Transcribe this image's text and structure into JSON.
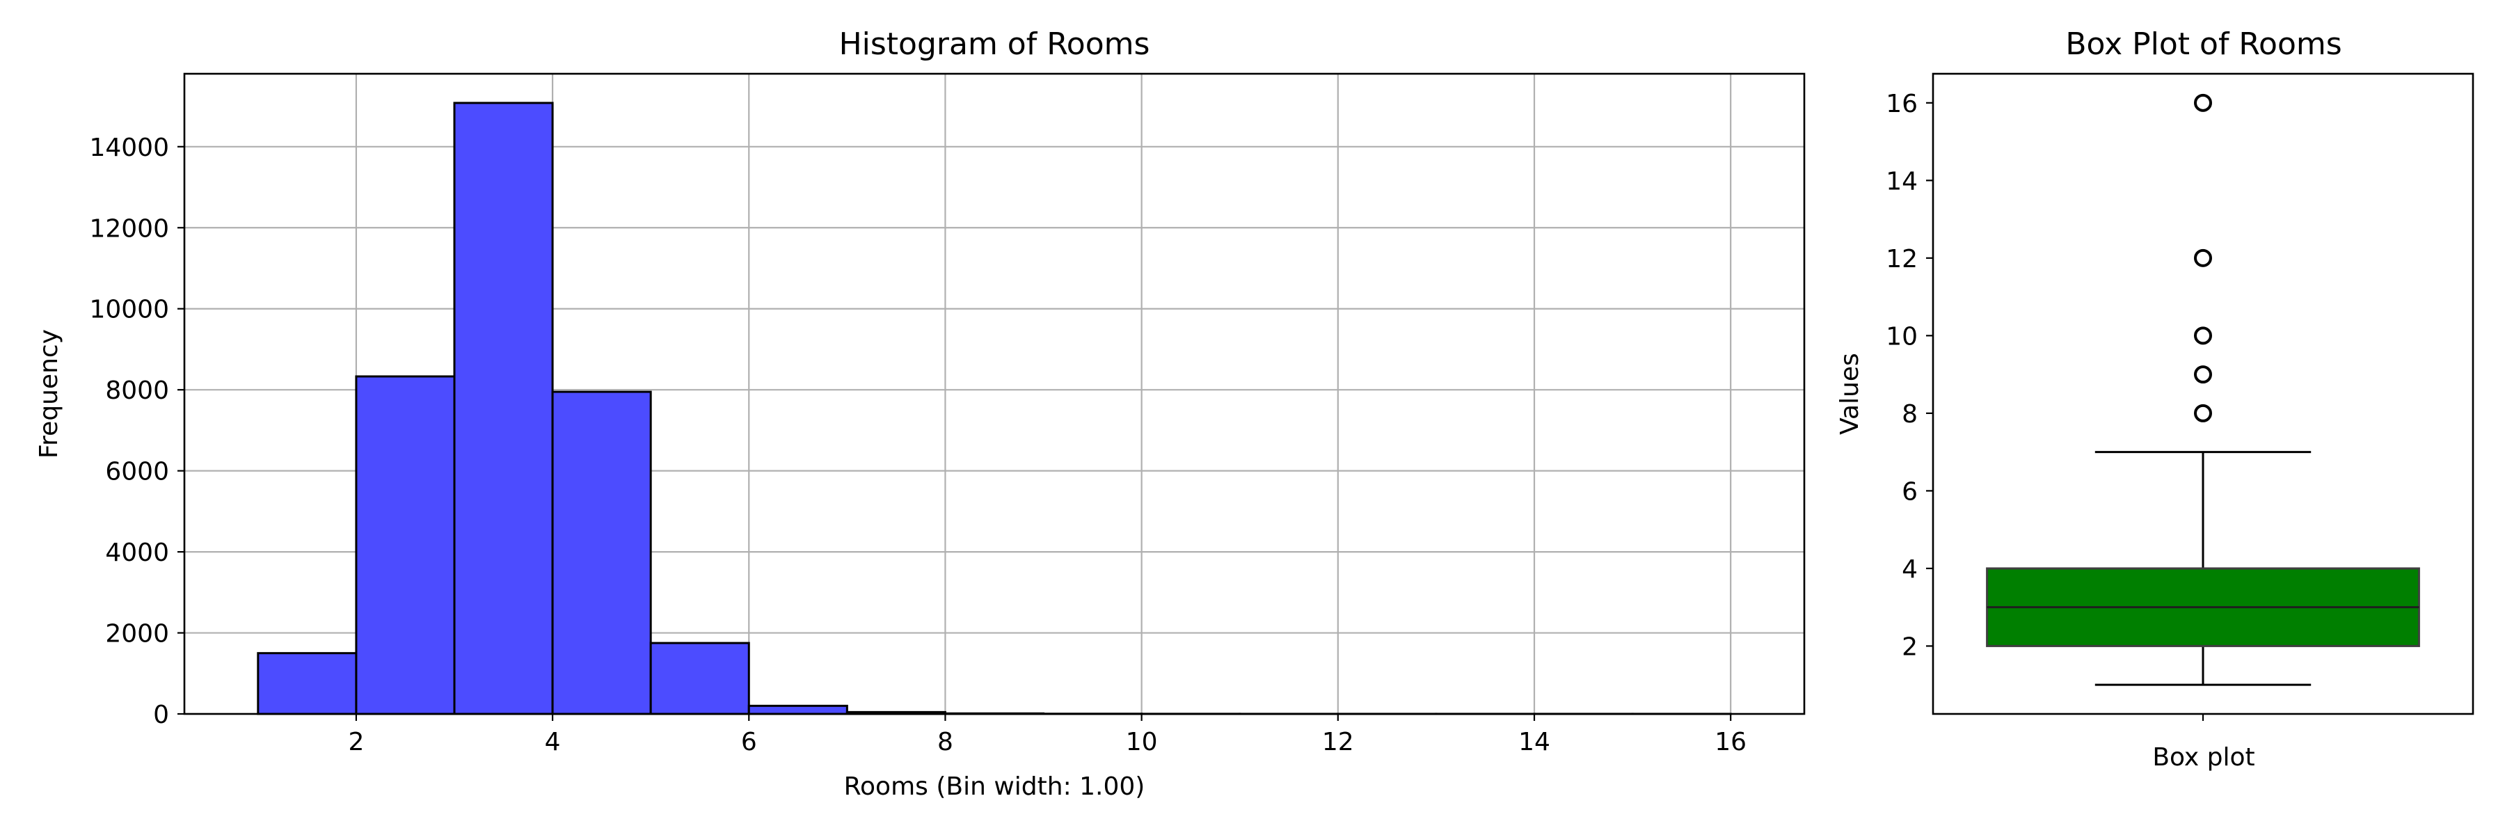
{
  "chart_data": [
    {
      "type": "bar",
      "title": "Histogram of Rooms",
      "xlabel": "Rooms (Bin width: 1.00)",
      "ylabel": "Frequency",
      "xlim": [
        0.25,
        16.75
      ],
      "ylim": [
        0,
        15800
      ],
      "xticks": [
        2,
        4,
        6,
        8,
        10,
        12,
        14,
        16
      ],
      "yticks": [
        0,
        2000,
        4000,
        6000,
        8000,
        10000,
        12000,
        14000
      ],
      "grid": true,
      "bins": [
        {
          "start": 1,
          "end": 2,
          "count": 1500
        },
        {
          "start": 2,
          "end": 3,
          "count": 8330
        },
        {
          "start": 3,
          "end": 4,
          "count": 15080
        },
        {
          "start": 4,
          "end": 5,
          "count": 7950
        },
        {
          "start": 5,
          "end": 6,
          "count": 1750
        },
        {
          "start": 6,
          "end": 7,
          "count": 200
        },
        {
          "start": 7,
          "end": 8,
          "count": 45
        },
        {
          "start": 8,
          "end": 9,
          "count": 12
        },
        {
          "start": 9,
          "end": 10,
          "count": 4
        },
        {
          "start": 10,
          "end": 11,
          "count": 2
        },
        {
          "start": 11,
          "end": 12,
          "count": 1
        },
        {
          "start": 12,
          "end": 13,
          "count": 1
        },
        {
          "start": 13,
          "end": 14,
          "count": 1
        },
        {
          "start": 14,
          "end": 15,
          "count": 1
        },
        {
          "start": 15,
          "end": 16,
          "count": 1
        }
      ],
      "bar_color": "#4c4cff",
      "edge_color": "#000000",
      "grid_color": "#b0b0b0"
    },
    {
      "type": "box",
      "title": "Box Plot of Rooms",
      "xlabel": "Box plot",
      "ylabel": "Values",
      "ylim": [
        0.25,
        16.75
      ],
      "yticks": [
        2,
        4,
        6,
        8,
        10,
        12,
        14,
        16
      ],
      "grid": false,
      "whisker_low": 1,
      "q1": 2,
      "median": 3,
      "q3": 4,
      "whisker_high": 7,
      "outliers": [
        8,
        9,
        10,
        12,
        16
      ],
      "box_color": "#007f00"
    }
  ]
}
